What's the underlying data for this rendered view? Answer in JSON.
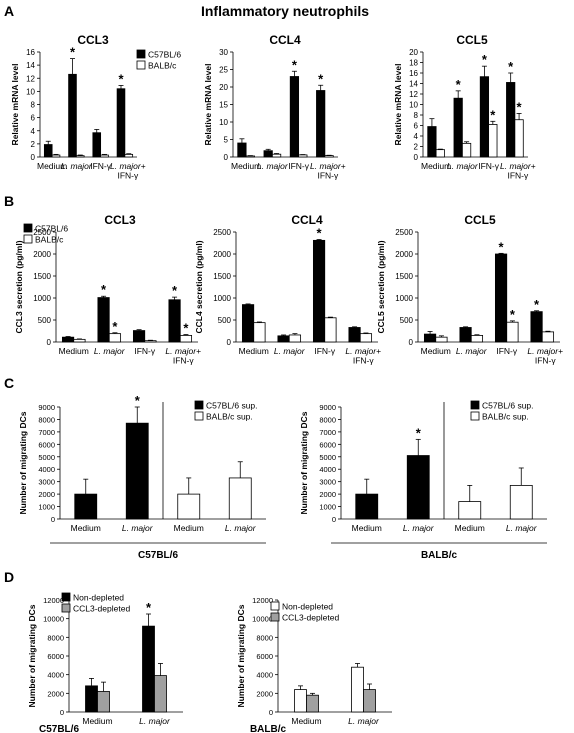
{
  "figure": {
    "title": "Inflammatory neutrophils",
    "panel_letters": [
      "A",
      "B",
      "C",
      "D"
    ]
  },
  "chart_data": [
    {
      "id": "A1",
      "type": "bar",
      "title": "CCL3",
      "ylabel": "Relative mRNA level",
      "ylim": [
        0,
        16
      ],
      "yticks": [
        0,
        2,
        4,
        6,
        8,
        10,
        12,
        14,
        16
      ],
      "categories": [
        "Medium",
        "L. major",
        "IFN-γ",
        "L. major+ IFN-γ"
      ],
      "series": [
        {
          "name": "C57BL/6",
          "fill": "black",
          "values": [
            1.9,
            12.6,
            3.7,
            10.4
          ],
          "errors": [
            0.5,
            2.4,
            0.5,
            0.5
          ],
          "stars": [
            false,
            true,
            false,
            true
          ]
        },
        {
          "name": "BALB/c",
          "fill": "white",
          "values": [
            0.3,
            0.2,
            0.3,
            0.4
          ],
          "errors": [
            0.1,
            0.1,
            0.1,
            0.1
          ],
          "stars": [
            false,
            false,
            false,
            false
          ]
        }
      ],
      "legend": "top-right"
    },
    {
      "id": "A2",
      "type": "bar",
      "title": "CCL4",
      "ylabel": "Relative mRNA level",
      "ylim": [
        0,
        30
      ],
      "yticks": [
        0,
        5,
        10,
        15,
        20,
        25,
        30
      ],
      "categories": [
        "Medium",
        "L. major",
        "IFN-γ",
        "L. major+ IFN-γ"
      ],
      "series": [
        {
          "name": "C57BL/6",
          "fill": "black",
          "values": [
            4.0,
            1.8,
            23.0,
            19.0
          ],
          "errors": [
            1.2,
            0.4,
            1.5,
            1.5
          ],
          "stars": [
            false,
            false,
            true,
            true
          ]
        },
        {
          "name": "BALB/c",
          "fill": "white",
          "values": [
            0.3,
            0.8,
            0.6,
            0.4
          ],
          "errors": [
            0.1,
            0.2,
            0.1,
            0.1
          ],
          "stars": [
            false,
            false,
            false,
            false
          ]
        }
      ]
    },
    {
      "id": "A3",
      "type": "bar",
      "title": "CCL5",
      "ylabel": "Relative mRNA level",
      "ylim": [
        0,
        20
      ],
      "yticks": [
        0,
        2,
        4,
        6,
        8,
        10,
        12,
        14,
        16,
        18,
        20
      ],
      "categories": [
        "Medium",
        "L. major",
        "IFN-γ",
        "L. major+ IFN-γ"
      ],
      "series": [
        {
          "name": "C57BL/6",
          "fill": "black",
          "values": [
            5.8,
            11.2,
            15.3,
            14.2
          ],
          "errors": [
            1.5,
            1.4,
            2.0,
            1.8
          ],
          "stars": [
            false,
            true,
            true,
            true
          ]
        },
        {
          "name": "BALB/c",
          "fill": "white",
          "values": [
            1.4,
            2.6,
            6.2,
            7.1
          ],
          "errors": [
            0.1,
            0.3,
            0.6,
            1.2
          ],
          "stars": [
            false,
            false,
            true,
            true
          ]
        }
      ]
    },
    {
      "id": "B1",
      "type": "bar",
      "title": "CCL3",
      "ylabel": "CCL3 secretion (pg/ml)",
      "ylim": [
        0,
        2500
      ],
      "yticks": [
        0,
        500,
        1000,
        1500,
        2000,
        2500
      ],
      "categories": [
        "Medium",
        "L. major",
        "IFN-γ",
        "L. major+ IFN-γ"
      ],
      "series": [
        {
          "name": "C57BL/6",
          "fill": "black",
          "values": [
            110,
            1010,
            260,
            960
          ],
          "errors": [
            15,
            30,
            20,
            60
          ],
          "stars": [
            false,
            true,
            false,
            true
          ]
        },
        {
          "name": "BALB/c",
          "fill": "white",
          "values": [
            60,
            190,
            30,
            150
          ],
          "errors": [
            10,
            20,
            10,
            20
          ],
          "stars": [
            false,
            true,
            false,
            true
          ]
        }
      ],
      "legend": "top-left"
    },
    {
      "id": "B2",
      "type": "bar",
      "title": "CCL4",
      "ylabel": "CCL4 secretion (pg/ml)",
      "ylim": [
        0,
        2500
      ],
      "yticks": [
        0,
        500,
        1000,
        1500,
        2000,
        2500
      ],
      "categories": [
        "Medium",
        "L. major",
        "IFN-γ",
        "L. major+ IFN-γ"
      ],
      "series": [
        {
          "name": "C57BL/6",
          "fill": "black",
          "values": [
            850,
            140,
            2310,
            330
          ],
          "errors": [
            15,
            20,
            20,
            15
          ],
          "stars": [
            false,
            false,
            true,
            false
          ]
        },
        {
          "name": "BALB/c",
          "fill": "white",
          "values": [
            440,
            160,
            550,
            190
          ],
          "errors": [
            15,
            30,
            15,
            15
          ],
          "stars": [
            false,
            false,
            false,
            false
          ]
        }
      ]
    },
    {
      "id": "B3",
      "type": "bar",
      "title": "CCL5",
      "ylabel": "CCL5 secretion (pg/ml)",
      "ylim": [
        0,
        2500
      ],
      "yticks": [
        0,
        500,
        1000,
        1500,
        2000,
        2500
      ],
      "categories": [
        "Medium",
        "L. major",
        "IFN-γ",
        "L. major+ IFN-γ"
      ],
      "series": [
        {
          "name": "C57BL/6",
          "fill": "black",
          "values": [
            180,
            330,
            2000,
            690
          ],
          "errors": [
            60,
            15,
            15,
            20
          ],
          "stars": [
            false,
            false,
            true,
            true
          ]
        },
        {
          "name": "BALB/c",
          "fill": "white",
          "values": [
            110,
            150,
            450,
            230
          ],
          "errors": [
            30,
            15,
            30,
            15
          ],
          "stars": [
            false,
            false,
            true,
            false
          ]
        }
      ]
    },
    {
      "id": "C1",
      "type": "bar",
      "ylabel": "Number of migrating DCs",
      "ylim": [
        0,
        9000
      ],
      "yticks": [
        0,
        1000,
        2000,
        3000,
        4000,
        5000,
        6000,
        7000,
        8000,
        9000
      ],
      "categories": [
        "Medium",
        "L. major",
        "Medium",
        "L. major"
      ],
      "fills": [
        "black",
        "black",
        "white",
        "white"
      ],
      "values": [
        2000,
        7700,
        2000,
        3300
      ],
      "errors": [
        1200,
        1300,
        1300,
        1300
      ],
      "stars": [
        false,
        true,
        false,
        false
      ],
      "legend_items": [
        "C57BL/6 sup.",
        "BALB/c sup."
      ],
      "group_label": "C57BL/6"
    },
    {
      "id": "C2",
      "type": "bar",
      "ylabel": "Number of migrating DCs",
      "ylim": [
        0,
        9000
      ],
      "yticks": [
        0,
        1000,
        2000,
        3000,
        4000,
        5000,
        6000,
        7000,
        8000,
        9000
      ],
      "categories": [
        "Medium",
        "L. major",
        "Medium",
        "L. major"
      ],
      "fills": [
        "black",
        "black",
        "white",
        "white"
      ],
      "values": [
        2000,
        5100,
        1400,
        2700
      ],
      "errors": [
        1200,
        1300,
        1300,
        1400
      ],
      "stars": [
        false,
        true,
        false,
        false
      ],
      "legend_items": [
        "C57BL/6 sup.",
        "BALB/c sup."
      ],
      "group_label": "BALB/c"
    },
    {
      "id": "D1",
      "type": "bar",
      "ylabel": "Number of migrating DCs",
      "ylim": [
        0,
        12000
      ],
      "yticks": [
        0,
        2000,
        4000,
        6000,
        8000,
        10000,
        12000
      ],
      "categories": [
        "Medium",
        "L. major"
      ],
      "series": [
        {
          "name": "Non-depleted",
          "fill": "black",
          "values": [
            2800,
            9200
          ],
          "errors": [
            800,
            1300
          ],
          "stars": [
            false,
            true
          ]
        },
        {
          "name": "CCL3-depleted",
          "fill": "gray",
          "values": [
            2200,
            3900
          ],
          "errors": [
            1000,
            1300
          ],
          "stars": [
            false,
            false
          ]
        }
      ],
      "group_label": "C57BL/6"
    },
    {
      "id": "D2",
      "type": "bar",
      "ylabel": "Number of migrating DCs",
      "ylim": [
        0,
        12000
      ],
      "yticks": [
        0,
        2000,
        4000,
        6000,
        8000,
        10000,
        12000
      ],
      "categories": [
        "Medium",
        "L. major"
      ],
      "series": [
        {
          "name": "Non-depleted",
          "fill": "white",
          "values": [
            2400,
            4800
          ],
          "errors": [
            400,
            400
          ],
          "stars": [
            false,
            false
          ]
        },
        {
          "name": "CCL3-depleted",
          "fill": "gray",
          "values": [
            1800,
            2400
          ],
          "errors": [
            200,
            600
          ],
          "stars": [
            false,
            false
          ]
        }
      ],
      "group_label": "BALB/c"
    }
  ]
}
